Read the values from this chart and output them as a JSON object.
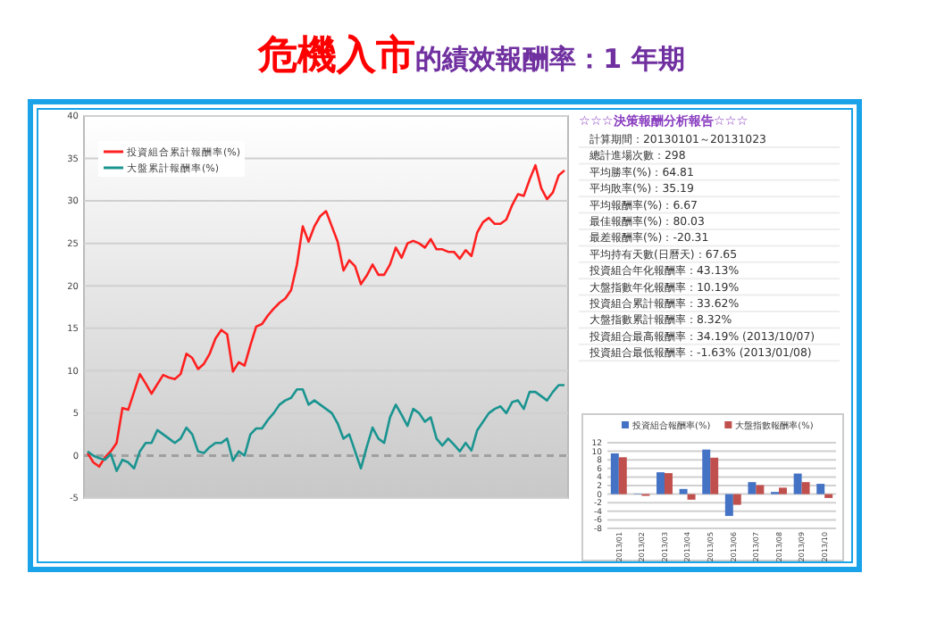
{
  "chart_data": [
    {
      "type": "line",
      "title": "危機入市的績效報酬率：1 年期",
      "categories": [
        null,
        null,
        null,
        null,
        null,
        null,
        null,
        null,
        null,
        null,
        null,
        null,
        null,
        null,
        null,
        null,
        null,
        null,
        null,
        null,
        null,
        null,
        null,
        null,
        null,
        null,
        null,
        null,
        null,
        null,
        null,
        null,
        null,
        null,
        null,
        null,
        null,
        null,
        null,
        null,
        null,
        null,
        null,
        null,
        null,
        null,
        null,
        null,
        null,
        null,
        null,
        null,
        null,
        null,
        null,
        null,
        null,
        null,
        null,
        null,
        null,
        null,
        null,
        null,
        null,
        null,
        null,
        null,
        null,
        null,
        null,
        null,
        null,
        null,
        null,
        null,
        null,
        null,
        null,
        null,
        null,
        null,
        null
      ],
      "series": [
        {
          "name": "投資組合累計報酬率(%)",
          "color": "#ff2020",
          "values": [
            0.3,
            -0.8,
            -1.3,
            -0.2,
            0.5,
            1.5,
            5.6,
            5.4,
            7.5,
            9.6,
            8.5,
            7.3,
            8.4,
            9.5,
            9.2,
            9.0,
            9.6,
            12.0,
            11.5,
            10.2,
            10.8,
            12,
            13.8,
            14.8,
            14.3,
            9.9,
            11,
            10.6,
            13,
            15.2,
            15.5,
            16.5,
            17.3,
            18,
            18.5,
            19.5,
            22.5,
            27,
            25.2,
            27,
            28.2,
            28.8,
            27,
            25.2,
            21.8,
            23,
            22.3,
            20.2,
            21.2,
            22.5,
            21.3,
            21.3,
            22.5,
            24.5,
            23.3,
            25,
            25.3,
            25,
            24.5,
            25.5,
            24.3,
            24.3,
            24,
            24,
            23.2,
            24.2,
            23.5,
            26.3,
            27.5,
            28,
            27.3,
            27.3,
            27.8,
            29.5,
            30.8,
            30.6,
            32.5,
            34.2,
            31.5,
            30.2,
            31,
            33,
            33.6
          ]
        },
        {
          "name": "大盤累計報酬率(%)",
          "color": "#1a9490",
          "values": [
            0.5,
            0,
            -0.3,
            -0.5,
            0.2,
            -1.8,
            -0.5,
            -0.8,
            -1.5,
            0.5,
            1.5,
            1.5,
            3,
            2.5,
            2,
            1.5,
            2,
            3.3,
            2.5,
            0.5,
            0.3,
            1,
            1.5,
            1.5,
            2,
            -0.6,
            0.5,
            0,
            2.5,
            3.2,
            3.2,
            4.2,
            5,
            6,
            6.5,
            6.8,
            7.8,
            7.8,
            6,
            6.5,
            6,
            5.5,
            5,
            3.8,
            2,
            2.5,
            0.5,
            -1.5,
            1,
            3.3,
            2,
            1.5,
            4.5,
            6,
            4.8,
            3.5,
            5.5,
            5,
            4,
            4.5,
            2,
            1.2,
            2,
            1.3,
            0.5,
            1.5,
            0.6,
            3,
            4,
            5,
            5.5,
            5.8,
            5,
            6.3,
            6.5,
            5.5,
            7.5,
            7.5,
            7,
            6.5,
            7.5,
            8.3,
            8.3
          ]
        }
      ],
      "ylim": [
        -5,
        40
      ],
      "yticks": [
        -5,
        0,
        5,
        10,
        15,
        20,
        25,
        30,
        35,
        40
      ],
      "grid": "y",
      "legend": "top left",
      "tick_labels": "y",
      "ref_lines": [
        {
          "axis": "y",
          "value": 0,
          "color": "#a0a0a0",
          "line_style": "dashed"
        }
      ]
    },
    {
      "type": "other",
      "title": "☆☆☆決策報酬分析報告☆☆☆",
      "annotations": [
        "計算期間：20130101～20131023",
        "總計進場次數：298",
        "平均勝率(%)：64.81",
        "平均敗率(%)：35.19",
        "平均報酬率(%)：6.67",
        "最佳報酬率(%)：80.03",
        "最差報酬率(%)：-20.31",
        "平均持有天數(日曆天)：67.65",
        "投資組合年化報酬率：43.13%",
        "大盤指數年化報酬率：10.19%",
        "投資組合累計報酬率：33.62%",
        "大盤指數累計報酬率：8.32%",
        "投資組合最高報酬率：34.19% (2013/10/07)",
        "投資組合最低報酬率：-1.63% (2013/01/08)"
      ]
    },
    {
      "type": "bar",
      "categories": [
        "2013/01",
        "2013/02",
        "2013/03",
        "2013/04",
        "2013/05",
        "2013/06",
        "2013/07",
        "2013/08",
        "2013/09",
        "2013/10"
      ],
      "series": [
        {
          "name": "投資組合報酬率(%)",
          "color": "#4472c4",
          "values": [
            9.5,
            0.1,
            5.1,
            1.2,
            10.4,
            -5.1,
            2.8,
            0.5,
            4.8,
            2.4
          ]
        },
        {
          "name": "大盤指數報酬率(%)",
          "color": "#c0504d",
          "values": [
            8.6,
            -0.4,
            4.9,
            -1.3,
            8.5,
            -2.5,
            2.1,
            1.5,
            2.8,
            -0.9
          ]
        }
      ],
      "ylim": [
        -8,
        12
      ],
      "yticks": [
        -8,
        -6,
        -4,
        -2,
        0,
        2,
        4,
        6,
        8,
        10,
        12
      ],
      "grid": "y",
      "legend": "top"
    }
  ]
}
